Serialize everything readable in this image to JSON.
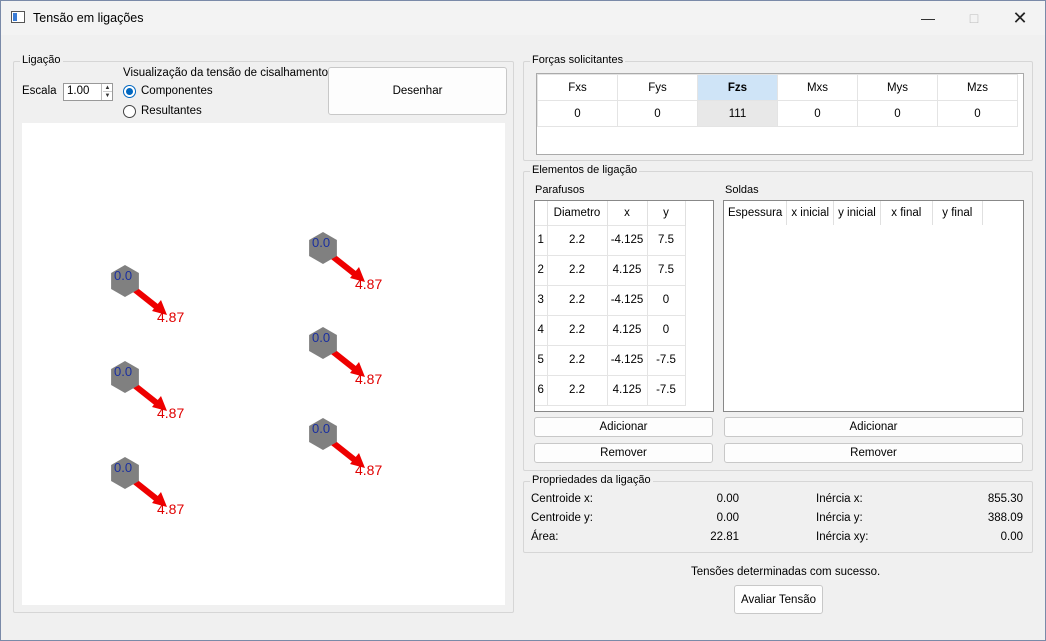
{
  "window": {
    "title": "Tensão em ligações"
  },
  "ligacao": {
    "group_title": "Ligação",
    "escala_label": "Escala",
    "escala_value": "1.00",
    "visualizacao_label": "Visualização da tensão de cisalhamento:",
    "radio_componentes": "Componentes",
    "radio_resultantes": "Resultantes",
    "selected_mode": "Componentes",
    "desenhar_button": "Desenhar"
  },
  "canvas": {
    "bolts": [
      {
        "label": "0.0",
        "value": "4.87"
      },
      {
        "label": "0.0",
        "value": "4.87"
      },
      {
        "label": "0.0",
        "value": "4.87"
      },
      {
        "label": "0.0",
        "value": "4.87"
      },
      {
        "label": "0.0",
        "value": "4.87"
      },
      {
        "label": "0.0",
        "value": "4.87"
      }
    ],
    "colors": {
      "bolt": "#808080",
      "arrow": "#ee0000",
      "label": "#1a2fa0",
      "value": "#e00000"
    }
  },
  "forcas": {
    "group_title": "Forças solicitantes",
    "headers": [
      "Fxs",
      "Fys",
      "Fzs",
      "Mxs",
      "Mys",
      "Mzs"
    ],
    "values": [
      "0",
      "0",
      "111",
      "0",
      "0",
      "0"
    ],
    "selected_column": "Fzs"
  },
  "elementos": {
    "group_title": "Elementos de ligação",
    "parafusos": {
      "title": "Parafusos",
      "headers": [
        "Diametro",
        "x",
        "y"
      ],
      "rows": [
        {
          "index": "1",
          "diametro": "2.2",
          "x": "-4.125",
          "y": "7.5"
        },
        {
          "index": "2",
          "diametro": "2.2",
          "x": "4.125",
          "y": "7.5"
        },
        {
          "index": "3",
          "diametro": "2.2",
          "x": "-4.125",
          "y": "0"
        },
        {
          "index": "4",
          "diametro": "2.2",
          "x": "4.125",
          "y": "0"
        },
        {
          "index": "5",
          "diametro": "2.2",
          "x": "-4.125",
          "y": "-7.5"
        },
        {
          "index": "6",
          "diametro": "2.2",
          "x": "4.125",
          "y": "-7.5"
        }
      ],
      "adicionar": "Adicionar",
      "remover": "Remover"
    },
    "soldas": {
      "title": "Soldas",
      "headers": [
        "Espessura",
        "x inicial",
        "y inicial",
        "x final",
        "y final"
      ],
      "adicionar": "Adicionar",
      "remover": "Remover"
    }
  },
  "propriedades": {
    "group_title": "Propriedades da ligação",
    "centroide_x_label": "Centroide x:",
    "centroide_x": "0.00",
    "centroide_y_label": "Centroide y:",
    "centroide_y": "0.00",
    "area_label": "Área:",
    "area": "22.81",
    "inercia_x_label": "Inércia x:",
    "inercia_x": "855.30",
    "inercia_y_label": "Inércia y:",
    "inercia_y": "388.09",
    "inercia_xy_label": "Inércia xy:",
    "inercia_xy": "0.00"
  },
  "status": {
    "message": "Tensões determinadas com sucesso.",
    "avaliar_button": "Avaliar Tensão"
  }
}
